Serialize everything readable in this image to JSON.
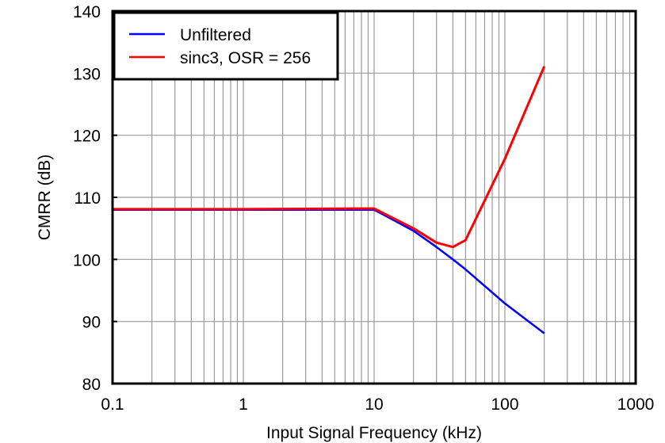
{
  "chart_data": {
    "type": "line",
    "title": "",
    "xlabel": "Input Signal Frequency (kHz)",
    "ylabel": "CMRR (dB)",
    "xscale": "log",
    "xlim": [
      0.1,
      1000
    ],
    "ylim": [
      80,
      140
    ],
    "x_ticks": [
      0.1,
      1,
      10,
      100,
      1000
    ],
    "x_tick_labels": [
      "0.1",
      "1",
      "10",
      "100",
      "1000"
    ],
    "y_ticks": [
      80,
      90,
      100,
      110,
      120,
      130,
      140
    ],
    "y_tick_labels": [
      "80",
      "90",
      "100",
      "110",
      "120",
      "130",
      "140"
    ],
    "grid": true,
    "legend_position": "upper-left",
    "series": [
      {
        "name": "Unfiltered",
        "color": "#0000ff",
        "x": [
          0.1,
          1,
          5,
          10,
          20,
          30,
          40,
          50,
          100,
          200
        ],
        "y": [
          108.0,
          108.0,
          108.0,
          108.0,
          104.6,
          102.0,
          100.0,
          98.4,
          92.9,
          88.1
        ]
      },
      {
        "name": "sinc3, OSR = 256",
        "color": "#ff0000",
        "x": [
          0.1,
          1,
          7,
          10,
          20,
          30,
          40,
          50,
          100,
          200
        ],
        "y": [
          108.1,
          108.1,
          108.2,
          108.2,
          105.0,
          102.7,
          102.0,
          103.1,
          116.2,
          131.1
        ]
      }
    ]
  },
  "axes": {
    "xlabel": "Input Signal Frequency (kHz)",
    "ylabel": "CMRR (dB)"
  },
  "legend": {
    "items": [
      {
        "label": "Unfiltered",
        "color": "#0000ff"
      },
      {
        "label": "sinc3, OSR = 256",
        "color": "#ff0000"
      }
    ]
  },
  "colors": {
    "grid": "#999999",
    "frame": "#000000"
  }
}
